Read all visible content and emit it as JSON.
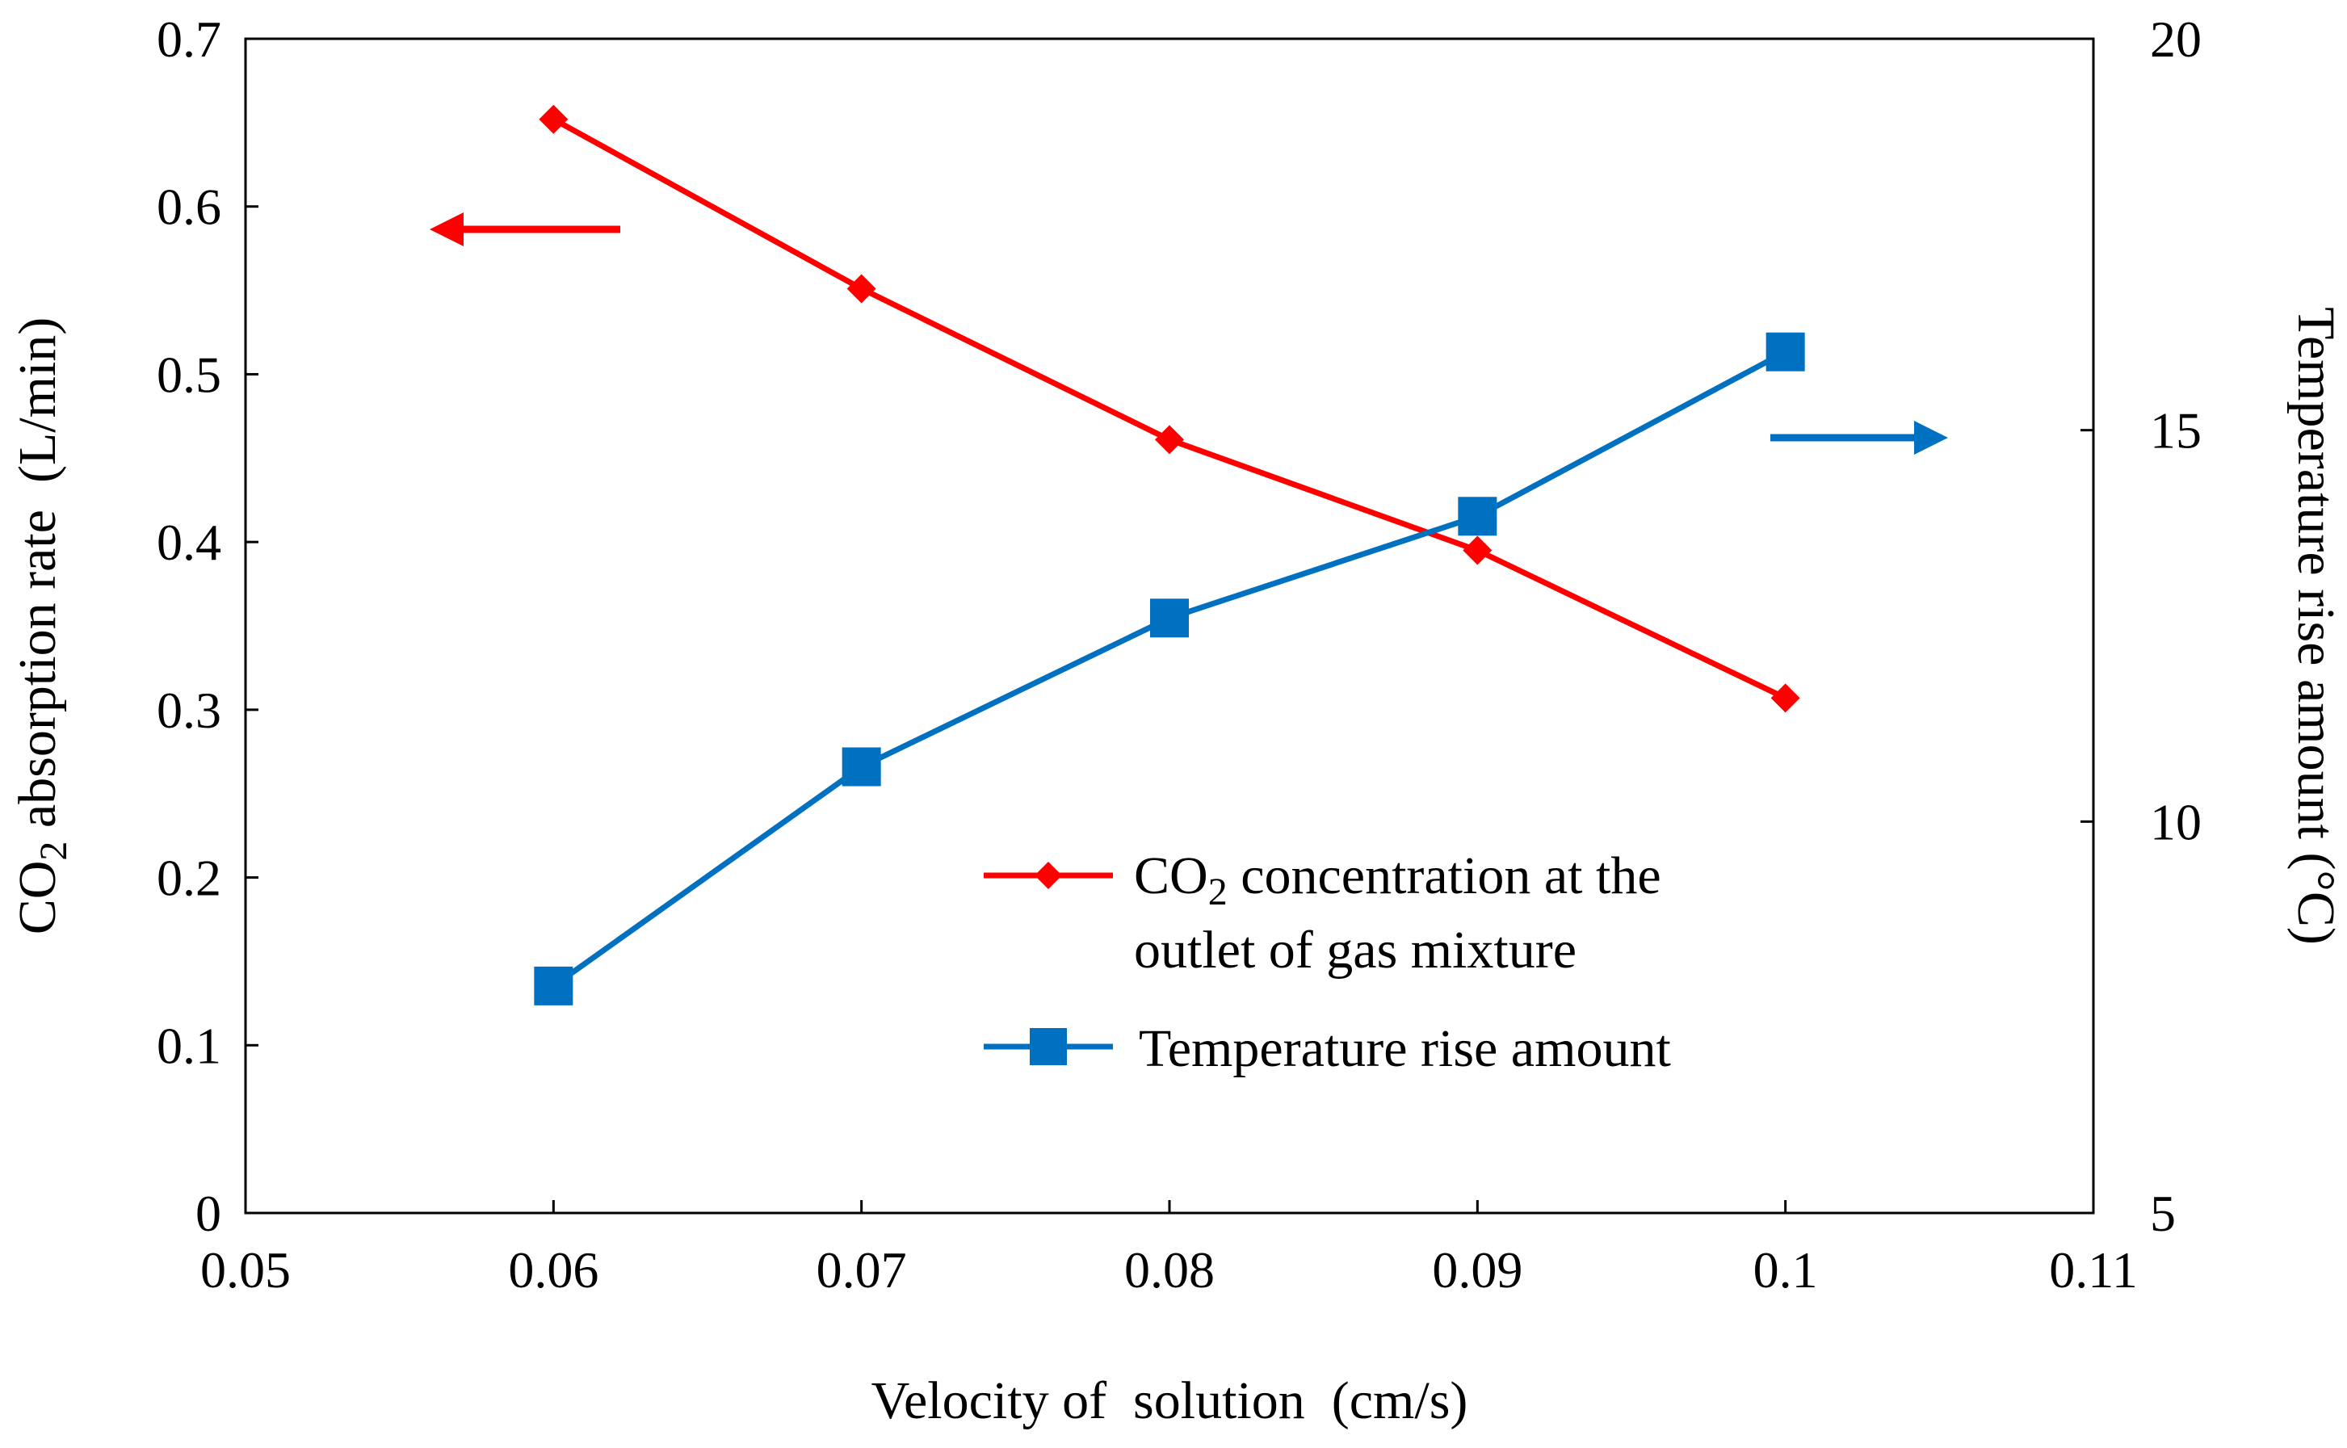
{
  "chart_data": {
    "type": "line",
    "x": [
      0.06,
      0.07,
      0.08,
      0.09,
      0.1
    ],
    "series": [
      {
        "name": "CO2 concentration at the outlet of gas mixture",
        "axis": "left",
        "marker": "diamond",
        "color": "#ff0000",
        "values": [
          0.652,
          0.551,
          0.461,
          0.395,
          0.307
        ]
      },
      {
        "name": "Temperature rise amount",
        "axis": "right",
        "marker": "square",
        "color": "#0070c0",
        "values": [
          7.9,
          10.7,
          12.6,
          13.9,
          16.0
        ]
      }
    ],
    "xlabel": "Velocity of  solution  (cm/s)",
    "ylabel_left": {
      "main": "CO",
      "sub": "2",
      "rest": " absorption rate  (L/min)"
    },
    "ylabel_right": "Temperature rise amount (°C)",
    "xlim": [
      0.05,
      0.11
    ],
    "ylim_left": [
      0,
      0.7
    ],
    "ylim_right": [
      5,
      20
    ],
    "x_ticks": [
      "0.05",
      "0.06",
      "0.07",
      "0.08",
      "0.09",
      "0.1",
      "0.11"
    ],
    "y_ticks_left": [
      "0",
      "0.1",
      "0.2",
      "0.3",
      "0.4",
      "0.5",
      "0.6",
      "0.7"
    ],
    "y_ticks_right": [
      "5",
      "10",
      "15",
      "20"
    ],
    "legend": {
      "position": "lower-right",
      "entries": [
        {
          "line1_main": "CO",
          "line1_sub": "2",
          "line1_rest": " concentration at the",
          "line2": "outlet of gas mixture"
        },
        {
          "line1": "Temperature rise amount"
        }
      ]
    },
    "annotations": [
      {
        "type": "arrow",
        "direction": "left",
        "points_to": "left axis",
        "color": "#ff0000"
      },
      {
        "type": "arrow",
        "direction": "right",
        "points_to": "right axis",
        "color": "#0070c0"
      }
    ],
    "grid": false
  }
}
